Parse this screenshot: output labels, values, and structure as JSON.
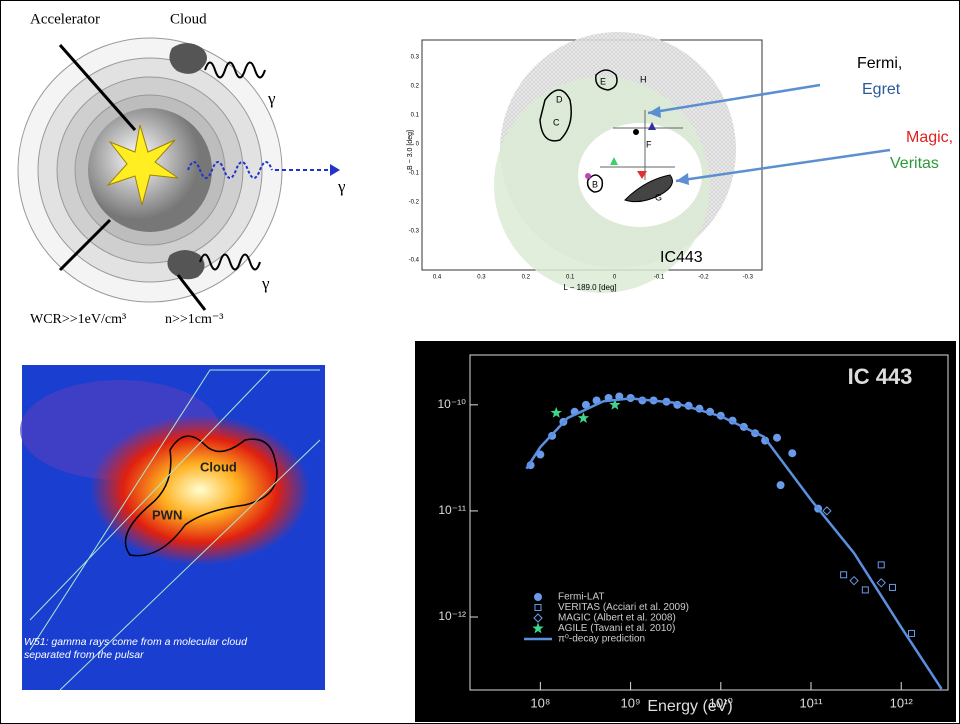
{
  "diagram": {
    "accelerator": "Accelerator",
    "cloud": "Cloud",
    "gamma": [
      "γ",
      "γ",
      "γ"
    ],
    "energy_density": "WCR>>1eV/cm³",
    "density": "n>>1cm⁻³"
  },
  "skymap": {
    "y_label": "B − 3.0 [deg]",
    "x_label": "L − 189.0 [deg]",
    "yticks": [
      0.3,
      0.2,
      0.1,
      0,
      -0.1,
      -0.2,
      -0.3,
      -0.4
    ],
    "xticks": [
      0.4,
      0.3,
      0.2,
      0.1,
      0,
      -0.1,
      -0.2,
      -0.3
    ],
    "regions": [
      "C",
      "D",
      "E",
      "F",
      "G",
      "H",
      "B"
    ],
    "fermi": "Fermi,",
    "egret": "Egret",
    "magic": "Magic,",
    "veritas": "Veritas",
    "source": "IC443"
  },
  "w51": {
    "cloud": "Cloud",
    "pwn": "PWN",
    "caption": "W51: gamma rays come from a molecular cloud separated from the pulsar"
  },
  "chart_data": {
    "type": "scatter",
    "title": "IC 443",
    "xlabel": "Energy (eV)",
    "xscale": "log",
    "yscale": "log",
    "xlim": [
      16600000.0,
      3300000000000.0
    ],
    "ylim": [
      2.05e-13,
      2.95e-10
    ],
    "xticks": [
      {
        "value": 100000000.0,
        "label": "10⁸"
      },
      {
        "value": 1000000000.0,
        "label": "10⁹"
      },
      {
        "value": 10000000000.0,
        "label": "10¹⁰"
      },
      {
        "value": 100000000000.0,
        "label": "10¹¹"
      },
      {
        "value": 1000000000000.0,
        "label": "10¹²"
      }
    ],
    "yticks": [
      {
        "value": 1e-12,
        "label": "10⁻¹²"
      },
      {
        "value": 1e-11,
        "label": "10⁻¹¹"
      },
      {
        "value": 1e-10,
        "label": "10⁻¹⁰"
      }
    ],
    "series": [
      {
        "name": "Fermi-LAT",
        "color": "#6a9bea",
        "marker": "circle",
        "x": [
          78000000.0,
          100000000.0,
          135000000.0,
          180000000.0,
          240000000.0,
          320000000.0,
          420000000.0,
          570000000.0,
          750000000.0,
          1000000000.0,
          1350000000.0,
          1800000000.0,
          2500000000.0,
          3300000000.0,
          4400000000.0,
          5800000000.0,
          7600000000.0,
          10000000000.0,
          13500000000.0,
          18000000000.0,
          24000000000.0,
          31000000000.0,
          42000000000.0,
          46000000000.0,
          62000000000.0,
          120000000000.0
        ],
        "values": [
          2.7e-11,
          3.4e-11,
          5.1e-11,
          6.9e-11,
          8.6e-11,
          1e-10,
          1.1e-10,
          1.16e-10,
          1.2e-10,
          1.16e-10,
          1.1e-10,
          1.1e-10,
          1.07e-10,
          1e-10,
          9.8e-11,
          9.2e-11,
          8.6e-11,
          7.9e-11,
          7.1e-11,
          6.2e-11,
          5.4e-11,
          4.6e-11,
          4.9e-11,
          1.75e-11,
          3.5e-11,
          1.05e-11
        ]
      },
      {
        "name": "VERITAS (Acciari et al. 2009)",
        "color": "#6a9bea",
        "marker": "square",
        "x": [
          230000000000.0,
          400000000000.0,
          600000000000.0,
          800000000000.0,
          1300000000000.0
        ],
        "values": [
          2.5e-12,
          1.8e-12,
          3.1e-12,
          1.9e-12,
          7e-13
        ]
      },
      {
        "name": "MAGIC (Albert et al. 2008)",
        "color": "#6a9bea",
        "marker": "diamond",
        "x": [
          150000000000.0,
          300000000000.0,
          600000000000.0
        ],
        "values": [
          1e-11,
          2.2e-12,
          2.1e-12
        ]
      },
      {
        "name": "AGILE (Tavani et al. 2010)",
        "color": "#3fd68a",
        "marker": "star",
        "x": [
          150000000.0,
          300000000.0,
          670000000.0
        ],
        "values": [
          8.4e-11,
          7.5e-11,
          1e-10
        ]
      },
      {
        "name": "π⁰-decay prediction",
        "color": "#5b8fe0",
        "marker": "line",
        "x": [
          70000000.0,
          100000000.0,
          200000000.0,
          500000000.0,
          1000000000.0,
          3000000000.0,
          10000000000.0,
          30000000000.0,
          100000000000.0,
          300000000000.0,
          1000000000000.0,
          2800000000000.0
        ],
        "values": [
          2.5e-11,
          4e-11,
          7.5e-11,
          1.08e-10,
          1.15e-10,
          1.05e-10,
          7.8e-11,
          5e-11,
          1.27e-11,
          4e-12,
          8e-13,
          2.1e-13
        ]
      }
    ]
  }
}
